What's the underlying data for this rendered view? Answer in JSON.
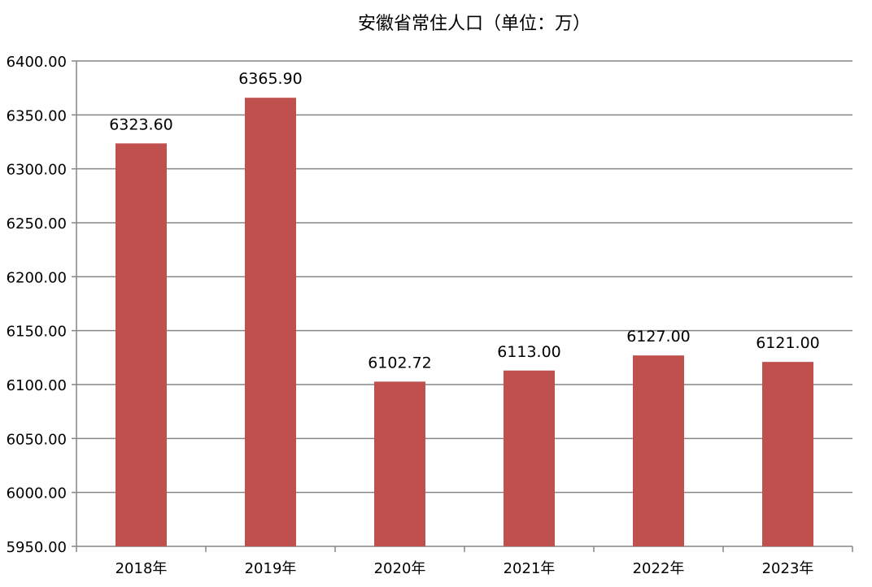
{
  "chart_data": {
    "type": "bar",
    "title": "安徽省常住人口（单位：万）",
    "categories": [
      "2018年",
      "2019年",
      "2020年",
      "2021年",
      "2022年",
      "2023年"
    ],
    "values": [
      6323.6,
      6365.9,
      6102.72,
      6113.0,
      6127.0,
      6121.0
    ],
    "value_labels": [
      "6323.60",
      "6365.90",
      "6102.72",
      "6113.00",
      "6127.00",
      "6121.00"
    ],
    "yticks": [
      "5950.00",
      "6000.00",
      "6050.00",
      "6100.00",
      "6150.00",
      "6200.00",
      "6250.00",
      "6300.00",
      "6350.00",
      "6400.00"
    ],
    "ylim": [
      5950,
      6400
    ],
    "xlabel": "",
    "ylabel": "",
    "grid": true,
    "legend": "none",
    "bar_color": "#C0504D",
    "grid_color": "#868686",
    "axis_color": "#868686"
  }
}
